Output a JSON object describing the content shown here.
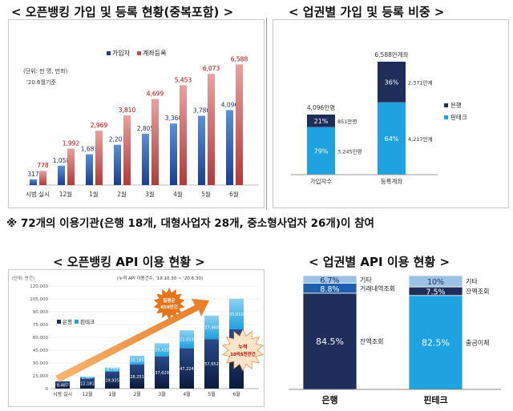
{
  "titles": {
    "top_left": "< 오픈뱅킹 가입 및 등록 현황(중복포함) >",
    "top_right": "< 업권별 가입 및 등록 비중 >",
    "bottom_left": "< 오픈뱅킹 API 이용 현황 >",
    "bottom_right": "< 업권별 API 이용 현황 >"
  },
  "note": "※ 72개의 이용기관(은행 18개, 대형사업자 28개, 중소형사업자 26개)이 참여",
  "colors": {
    "navy": "#1f3a8a",
    "red": "#c0504d",
    "lightblue": "#1fa2e0",
    "darknavy": "#1e2d5a",
    "orange": "#f28c28",
    "paleblue": "#9cc3e6"
  },
  "chart_data": [
    {
      "type": "bar",
      "unit_note": "(단위: 만 명, 만좌)",
      "date_note": "'20.6월기준",
      "categories": [
        "시범 실시",
        "12월",
        "1월",
        "2월",
        "3월",
        "4월",
        "5월",
        "6월"
      ],
      "series": [
        {
          "name": "가입자",
          "values": [
            317,
            1058,
            1683,
            2201,
            2805,
            3360,
            3780,
            4096
          ],
          "labels": [
            "317",
            "1,058",
            "1,683",
            "2,201",
            "2,805",
            "3,360",
            "3,780",
            "4,096"
          ]
        },
        {
          "name": "계좌등록",
          "values": [
            778,
            1992,
            2969,
            3810,
            4699,
            5453,
            6073,
            6588
          ],
          "labels": [
            "778",
            "1,992",
            "2,969",
            "3,810",
            "4,699",
            "5,453",
            "6,073",
            "6,588"
          ]
        }
      ],
      "ylim": [
        0,
        7000
      ]
    },
    {
      "type": "bar",
      "stacked": true,
      "categories": [
        "가입자수",
        "등록계좌"
      ],
      "totals": [
        "4,096만명",
        "6,588만계좌"
      ],
      "series": [
        {
          "name": "은행",
          "pct_labels": [
            "21%",
            "36%"
          ],
          "value_labels": [
            "851만명",
            "2,371만계"
          ]
        },
        {
          "name": "핀테크",
          "pct_labels": [
            "79%",
            "64%"
          ],
          "value_labels": [
            "3,245만명",
            "4,217만계"
          ]
        }
      ],
      "values_pct": {
        "은행": [
          21,
          36
        ],
        "핀테크": [
          79,
          64
        ]
      }
    },
    {
      "type": "bar",
      "stacked": true,
      "unit_note": "(단위: 만건)",
      "cum_note": "(누적 API 이용건수, '19.10.30 ~ '20.6.30)",
      "categories": [
        "시범 실시",
        "12월",
        "1월",
        "2월",
        "3월",
        "4월",
        "5월",
        "6월"
      ],
      "yticks": [
        "0",
        "15,000",
        "30,000",
        "45,000",
        "60,000",
        "75,000",
        "90,000",
        "105,000",
        "120,000"
      ],
      "ylim": [
        0,
        120000
      ],
      "series": [
        {
          "name": "은행",
          "values": [
            8487,
            12181,
            19935,
            28251,
            37629,
            47224,
            57952,
            69569
          ],
          "labels": [
            "8,487",
            "12,181",
            "19,935",
            "28,251",
            "37,629",
            "47,224",
            "57,952",
            "69,569"
          ]
        },
        {
          "name": "핀테크",
          "values": [
            0,
            1907,
            4733,
            10185,
            15420,
            21013,
            27460,
            35610
          ],
          "labels": [
            "",
            "1,907",
            "4,733",
            "10,185",
            "15,420",
            "21,013",
            "27,460",
            "35,610"
          ]
        }
      ],
      "callouts": {
        "daily_avg": "일평균\n659만건",
        "cumulative": "누적\n10억5천만건"
      }
    },
    {
      "type": "bar",
      "stacked": true,
      "categories": [
        "은행",
        "핀테크"
      ],
      "bars": [
        {
          "name": "은행",
          "segments": [
            {
              "label": "기타",
              "pct": 6.7,
              "text": "6.7%"
            },
            {
              "label": "거래내역조회",
              "pct": 8.8,
              "text": "8.8%"
            },
            {
              "label": "잔액조회",
              "pct": 84.5,
              "text": "84.5%"
            }
          ]
        },
        {
          "name": "핀테크",
          "segments": [
            {
              "label": "기타",
              "pct": 10,
              "text": "10%"
            },
            {
              "label": "잔액조회",
              "pct": 7.5,
              "text": "7.5%"
            },
            {
              "label": "출금이체",
              "pct": 82.5,
              "text": "82.5%"
            }
          ]
        }
      ]
    }
  ]
}
